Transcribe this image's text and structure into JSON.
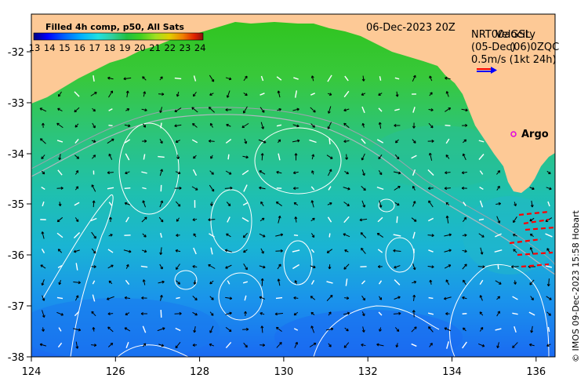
{
  "title": "Filled 4h comp, p50, All Sats",
  "date_label": "06-Dec-2023 20Z",
  "legend": {
    "line1": "NRT00aGSL",
    "line1b": "Velocity",
    "line2": "(05-Dec)",
    "line2b": "(06)0ZQC",
    "line3": "0.5m/s (1kt 24h)"
  },
  "argo_label": "Argo",
  "credit": "© IMOS 09-Dec-2023 15:58 Hobart",
  "colorbar": {
    "labels": [
      "13",
      "14",
      "15",
      "16",
      "17",
      "18",
      "19",
      "20",
      "21",
      "22",
      "23",
      "24"
    ],
    "colors": [
      "#00007f",
      "#0000ff",
      "#0060ff",
      "#00b0ff",
      "#20e0e0",
      "#30d0a0",
      "#20c040",
      "#40d020",
      "#a0e020",
      "#e0d000",
      "#f08000",
      "#e02000",
      "#8b1010"
    ]
  },
  "x_axis": {
    "ticks": [
      "124",
      "126",
      "128",
      "130",
      "132",
      "134",
      "136"
    ]
  },
  "y_axis": {
    "ticks": [
      "-32",
      "-33",
      "-34",
      "-35",
      "-36",
      "-37",
      "-38"
    ]
  },
  "colors": {
    "land": "#fdc996",
    "qc_box": "#ff0000",
    "argo_marker": "#e000e0",
    "arrow_red": "#ff0000",
    "arrow_blue": "#0000ff"
  }
}
